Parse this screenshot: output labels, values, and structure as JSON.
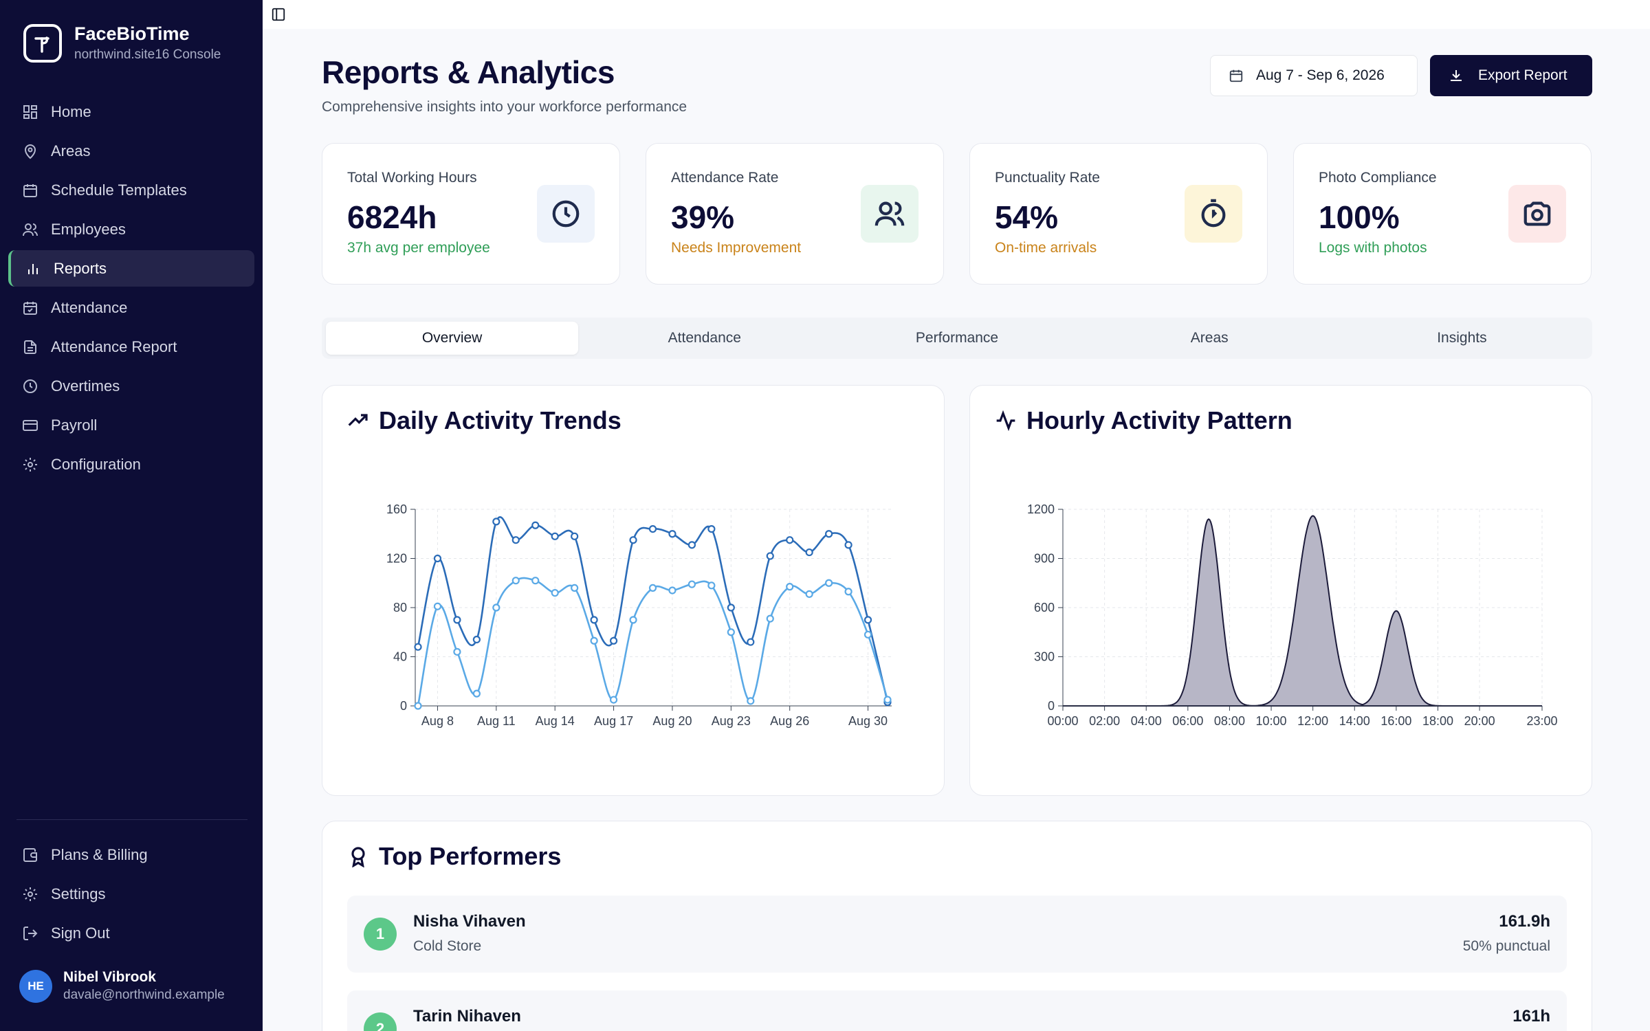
{
  "brand": {
    "name": "FaceBioTime",
    "subtitle": "northwind.site16 Console"
  },
  "nav": {
    "items": [
      {
        "label": "Home",
        "icon": "home-icon"
      },
      {
        "label": "Areas",
        "icon": "map-pin-icon"
      },
      {
        "label": "Schedule Templates",
        "icon": "calendar-icon"
      },
      {
        "label": "Employees",
        "icon": "users-icon"
      },
      {
        "label": "Reports",
        "icon": "bar-chart-icon",
        "active": true
      },
      {
        "label": "Attendance",
        "icon": "calendar-check-icon"
      },
      {
        "label": "Attendance Report",
        "icon": "file-text-icon"
      },
      {
        "label": "Overtimes",
        "icon": "clock-icon"
      },
      {
        "label": "Payroll",
        "icon": "credit-card-icon"
      },
      {
        "label": "Configuration",
        "icon": "gear-icon"
      }
    ],
    "bottom": [
      {
        "label": "Plans & Billing",
        "icon": "wallet-icon"
      },
      {
        "label": "Settings",
        "icon": "gear-icon"
      },
      {
        "label": "Sign Out",
        "icon": "sign-out-icon"
      }
    ]
  },
  "user": {
    "initials": "HE",
    "name": "Nibel Vibrook",
    "email": "davale@northwind.example"
  },
  "header": {
    "title": "Reports & Analytics",
    "subtitle": "Comprehensive insights into your workforce performance",
    "date_range": "Aug 7 - Sep 6, 2026",
    "export_label": "Export Report"
  },
  "stats": [
    {
      "label": "Total Working Hours",
      "value": "6824h",
      "sub": "37h avg per employee",
      "sub_color": "#2f9e57",
      "icon": "clock-icon",
      "icon_bg": "#eef3fb",
      "icon_color": "#1f2b4d"
    },
    {
      "label": "Attendance Rate",
      "value": "39%",
      "sub": "Needs Improvement",
      "sub_color": "#c9831a",
      "icon": "users-icon",
      "icon_bg": "#e8f6ee",
      "icon_color": "#1f2b4d"
    },
    {
      "label": "Punctuality Rate",
      "value": "54%",
      "sub": "On-time arrivals",
      "sub_color": "#c9831a",
      "icon": "timer-icon",
      "icon_bg": "#fdf5d9",
      "icon_color": "#1f2b4d"
    },
    {
      "label": "Photo Compliance",
      "value": "100%",
      "sub": "Logs with photos",
      "sub_color": "#2f9e57",
      "icon": "camera-icon",
      "icon_bg": "#fde8e8",
      "icon_color": "#1f2b4d"
    }
  ],
  "tabs": [
    {
      "label": "Overview",
      "active": true
    },
    {
      "label": "Attendance"
    },
    {
      "label": "Performance"
    },
    {
      "label": "Areas"
    },
    {
      "label": "Insights"
    }
  ],
  "chart_data": [
    {
      "title": "Daily Activity Trends",
      "type": "line",
      "ylim": [
        0,
        160
      ],
      "yticks": [
        0,
        40,
        80,
        120,
        160
      ],
      "xtick_labels": [
        "Aug 8",
        "Aug 11",
        "Aug 14",
        "Aug 17",
        "Aug 20",
        "Aug 23",
        "Aug 26",
        "Aug 30"
      ],
      "xtick_days": [
        8,
        11,
        14,
        17,
        20,
        23,
        26,
        30
      ],
      "x_days": [
        7,
        8,
        9,
        10,
        11,
        12,
        13,
        14,
        15,
        16,
        17,
        18,
        19,
        20,
        21,
        22,
        23,
        24,
        25,
        26,
        27,
        28,
        29,
        30,
        31
      ],
      "grid": true,
      "colors": [
        "#2b6cb8",
        "#5aa9e6"
      ],
      "series": [
        {
          "values": [
            48,
            120,
            70,
            54,
            150,
            135,
            147,
            138,
            138,
            70,
            53,
            135,
            144,
            140,
            131,
            144,
            80,
            52,
            122,
            135,
            125,
            140,
            131,
            70,
            3
          ]
        },
        {
          "values": [
            0,
            81,
            44,
            10,
            80,
            102,
            102,
            92,
            96,
            53,
            5,
            70,
            96,
            94,
            99,
            98,
            60,
            4,
            71,
            97,
            91,
            100,
            93,
            58,
            5
          ]
        }
      ]
    },
    {
      "title": "Hourly Activity Pattern",
      "type": "area",
      "ylim": [
        0,
        1200
      ],
      "yticks": [
        0,
        300,
        600,
        900,
        1200
      ],
      "xtick_labels": [
        "00:00",
        "02:00",
        "04:00",
        "06:00",
        "08:00",
        "10:00",
        "12:00",
        "14:00",
        "16:00",
        "18:00",
        "20:00",
        "23:00"
      ],
      "xtick_hours": [
        0,
        2,
        4,
        6,
        8,
        10,
        12,
        14,
        16,
        18,
        20,
        23
      ],
      "xlim": [
        0,
        23
      ],
      "grid": true,
      "fill_color": "#b7b6c6",
      "line_color": "#1c1b3a",
      "peaks": [
        {
          "hour": 7,
          "value": 1140
        },
        {
          "hour": 12,
          "value": 1160
        },
        {
          "hour": 16,
          "value": 580
        }
      ]
    }
  ],
  "performers_title": "Top Performers",
  "performers": [
    {
      "rank": "1",
      "name": "Nisha Vihaven",
      "area": "Cold Store",
      "hours": "161.9h",
      "punctual": "50% punctual"
    },
    {
      "rank": "2",
      "name": "Tarin Nihaven",
      "area": "",
      "hours": "161h",
      "punctual": ""
    }
  ]
}
